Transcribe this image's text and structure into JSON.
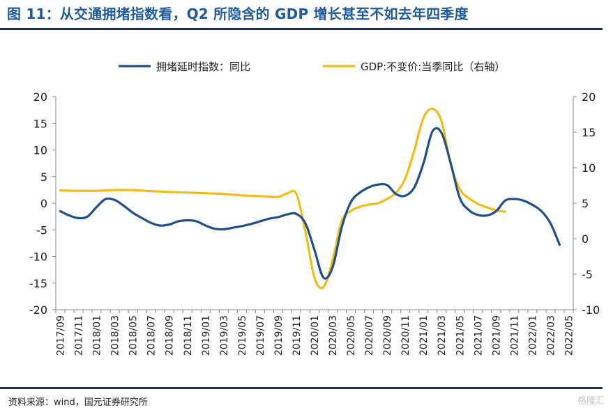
{
  "title": "图 11：从交通拥堵指数看，Q2 所隐含的 GDP 增长甚至不如去年四季度",
  "source": "资料来源：wind，国元证券研究所",
  "watermark": "格隆汇",
  "chart_data": {
    "type": "line",
    "legend_position": "top",
    "grid": false,
    "x_tick_labels": [
      "2017/09",
      "2017/11",
      "2018/01",
      "2018/03",
      "2018/05",
      "2018/07",
      "2018/09",
      "2018/11",
      "2019/01",
      "2019/03",
      "2019/05",
      "2019/07",
      "2019/09",
      "2019/11",
      "2020/01",
      "2020/03",
      "2020/05",
      "2020/07",
      "2020/09",
      "2020/11",
      "2021/01",
      "2021/03",
      "2021/05",
      "2021/07",
      "2021/09",
      "2021/11",
      "2022/01",
      "2022/03",
      "2022/05"
    ],
    "y_left": {
      "range": [
        -20,
        20
      ],
      "ticks": [
        -20,
        -15,
        -10,
        -5,
        0,
        5,
        10,
        15,
        20
      ]
    },
    "y_right": {
      "range": [
        -10,
        20
      ],
      "ticks": [
        -10,
        -5,
        0,
        5,
        10,
        15,
        20
      ]
    },
    "series": [
      {
        "name": "拥堵延时指数：同比",
        "axis": "left",
        "color": "#1f4e8c",
        "points": [
          [
            "2017/09",
            -1.5
          ],
          [
            "2017/10",
            -2.3
          ],
          [
            "2017/11",
            -2.8
          ],
          [
            "2017/12",
            -2.5
          ],
          [
            "2018/01",
            -0.7
          ],
          [
            "2018/02",
            0.8
          ],
          [
            "2018/03",
            0.6
          ],
          [
            "2018/04",
            -0.5
          ],
          [
            "2018/05",
            -1.8
          ],
          [
            "2018/06",
            -2.8
          ],
          [
            "2018/07",
            -3.7
          ],
          [
            "2018/08",
            -4.2
          ],
          [
            "2018/09",
            -4.0
          ],
          [
            "2018/10",
            -3.4
          ],
          [
            "2018/11",
            -3.2
          ],
          [
            "2018/12",
            -3.4
          ],
          [
            "2019/01",
            -4.2
          ],
          [
            "2019/02",
            -4.8
          ],
          [
            "2019/03",
            -4.9
          ],
          [
            "2019/04",
            -4.6
          ],
          [
            "2019/05",
            -4.3
          ],
          [
            "2019/06",
            -3.9
          ],
          [
            "2019/07",
            -3.4
          ],
          [
            "2019/08",
            -2.9
          ],
          [
            "2019/09",
            -2.6
          ],
          [
            "2019/10",
            -2.1
          ],
          [
            "2019/11",
            -2.0
          ],
          [
            "2019/12",
            -3.8
          ],
          [
            "2020/01",
            -8.8
          ],
          [
            "2020/02",
            -14.0
          ],
          [
            "2020/03",
            -12.0
          ],
          [
            "2020/04",
            -4.5
          ],
          [
            "2020/05",
            0.2
          ],
          [
            "2020/06",
            2.0
          ],
          [
            "2020/07",
            3.0
          ],
          [
            "2020/08",
            3.5
          ],
          [
            "2020/09",
            3.4
          ],
          [
            "2020/10",
            1.7
          ],
          [
            "2020/11",
            1.4
          ],
          [
            "2020/12",
            3.0
          ],
          [
            "2021/01",
            7.5
          ],
          [
            "2021/02",
            13.5
          ],
          [
            "2021/03",
            13.2
          ],
          [
            "2021/04",
            7.5
          ],
          [
            "2021/05",
            1.0
          ],
          [
            "2021/06",
            -1.3
          ],
          [
            "2021/07",
            -2.2
          ],
          [
            "2021/08",
            -2.3
          ],
          [
            "2021/09",
            -1.5
          ],
          [
            "2021/10",
            0.5
          ],
          [
            "2021/11",
            0.8
          ],
          [
            "2021/12",
            0.5
          ],
          [
            "2022/01",
            -0.3
          ],
          [
            "2022/02",
            -1.5
          ],
          [
            "2022/03",
            -3.8
          ],
          [
            "2022/04",
            -7.8
          ]
        ]
      },
      {
        "name": "GDP:不变价:当季同比（右轴）",
        "axis": "right",
        "color": "#f1bc19",
        "points": [
          [
            "2017/09",
            6.8
          ],
          [
            "2017/11",
            6.75
          ],
          [
            "2018/01",
            6.75
          ],
          [
            "2018/03",
            6.85
          ],
          [
            "2018/05",
            6.85
          ],
          [
            "2018/07",
            6.7
          ],
          [
            "2018/09",
            6.6
          ],
          [
            "2018/11",
            6.5
          ],
          [
            "2019/01",
            6.4
          ],
          [
            "2019/03",
            6.3
          ],
          [
            "2019/05",
            6.1
          ],
          [
            "2019/07",
            6.0
          ],
          [
            "2019/09",
            5.9
          ],
          [
            "2019/10",
            6.4
          ],
          [
            "2019/11",
            6.3
          ],
          [
            "2019/12",
            1.0
          ],
          [
            "2020/01",
            -5.5
          ],
          [
            "2020/02",
            -6.8
          ],
          [
            "2020/03",
            -3.0
          ],
          [
            "2020/04",
            2.5
          ],
          [
            "2020/05",
            3.9
          ],
          [
            "2020/06",
            4.5
          ],
          [
            "2020/07",
            4.8
          ],
          [
            "2020/08",
            5.0
          ],
          [
            "2020/09",
            5.6
          ],
          [
            "2020/10",
            6.5
          ],
          [
            "2020/11",
            8.5
          ],
          [
            "2020/12",
            12.5
          ],
          [
            "2021/01",
            17.0
          ],
          [
            "2021/02",
            18.3
          ],
          [
            "2021/03",
            16.5
          ],
          [
            "2021/04",
            10.5
          ],
          [
            "2021/05",
            7.0
          ],
          [
            "2021/06",
            5.7
          ],
          [
            "2021/07",
            4.9
          ],
          [
            "2021/08",
            4.4
          ],
          [
            "2021/09",
            4.0
          ],
          [
            "2021/10",
            3.8
          ]
        ]
      }
    ]
  }
}
